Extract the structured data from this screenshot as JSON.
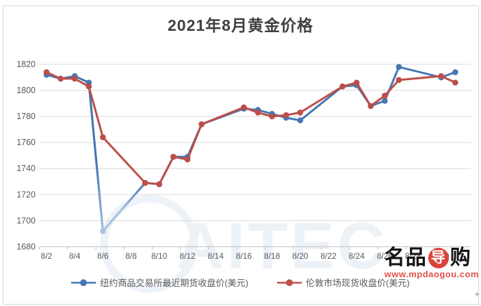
{
  "title": "2021年8月黄金价格",
  "colors": {
    "ny_blue": "#4676b4",
    "ny_blue_faded": "#a9c4de",
    "london_red": "#bd4e49",
    "grid": "#d9d9d9",
    "axis": "#bfbfbf",
    "tick_label": "#595959",
    "title_color": "#3f3f3f",
    "watermark_blue": "#6f9cc6",
    "logo_red": "#d9453c",
    "logo_black": "#141414",
    "logo_url_color": "#e2534d"
  },
  "watermark": {
    "center_text": "AITEC",
    "logo_part1": "名品",
    "logo_part2": "导",
    "logo_part3": "购",
    "logo_url": "www.mpdaogou.com"
  },
  "artifacts": {
    "plus": "+"
  },
  "chart_data": {
    "type": "line",
    "title": "2021年8月黄金价格",
    "x_unit": "日期 (2021年8月)",
    "ylabel": "",
    "xlabel": "",
    "ylim": [
      1680,
      1820
    ],
    "y_ticks": [
      1820,
      1800,
      1780,
      1760,
      1740,
      1720,
      1700,
      1680
    ],
    "x_tick_labels": [
      "8/2",
      "8/4",
      "8/6",
      "8/8",
      "8/10",
      "8/12",
      "8/14",
      "8/16",
      "8/18",
      "8/20",
      "8/22",
      "8/24",
      "8/26",
      "8/28",
      "8/30"
    ],
    "grid": "horizontal",
    "legend_position": "bottom",
    "days": [
      2,
      3,
      4,
      5,
      6,
      9,
      10,
      11,
      12,
      13,
      16,
      17,
      18,
      19,
      20,
      23,
      24,
      25,
      26,
      27,
      30,
      31
    ],
    "series": [
      {
        "name": "纽约商品交易所最近期货收盘价(美元)",
        "color_key": "ny_blue",
        "faded_day": 6,
        "values": [
          1812,
          1809,
          1811,
          1806,
          1692,
          1729,
          1728,
          1749,
          1749,
          1774,
          1786,
          1785,
          1782,
          1779,
          1777,
          1803,
          1804,
          1788,
          1792,
          1818,
          1810,
          1814
        ]
      },
      {
        "name": "伦敦市场现货收盘价(美元)",
        "color_key": "london_red",
        "values": [
          1814,
          1809,
          1809,
          1803,
          1764,
          1729,
          1728,
          1749,
          1747,
          1774,
          1787,
          1783,
          1780,
          1781,
          1783,
          1803,
          1806,
          1788,
          1796,
          1808,
          1811,
          1806
        ]
      }
    ]
  }
}
